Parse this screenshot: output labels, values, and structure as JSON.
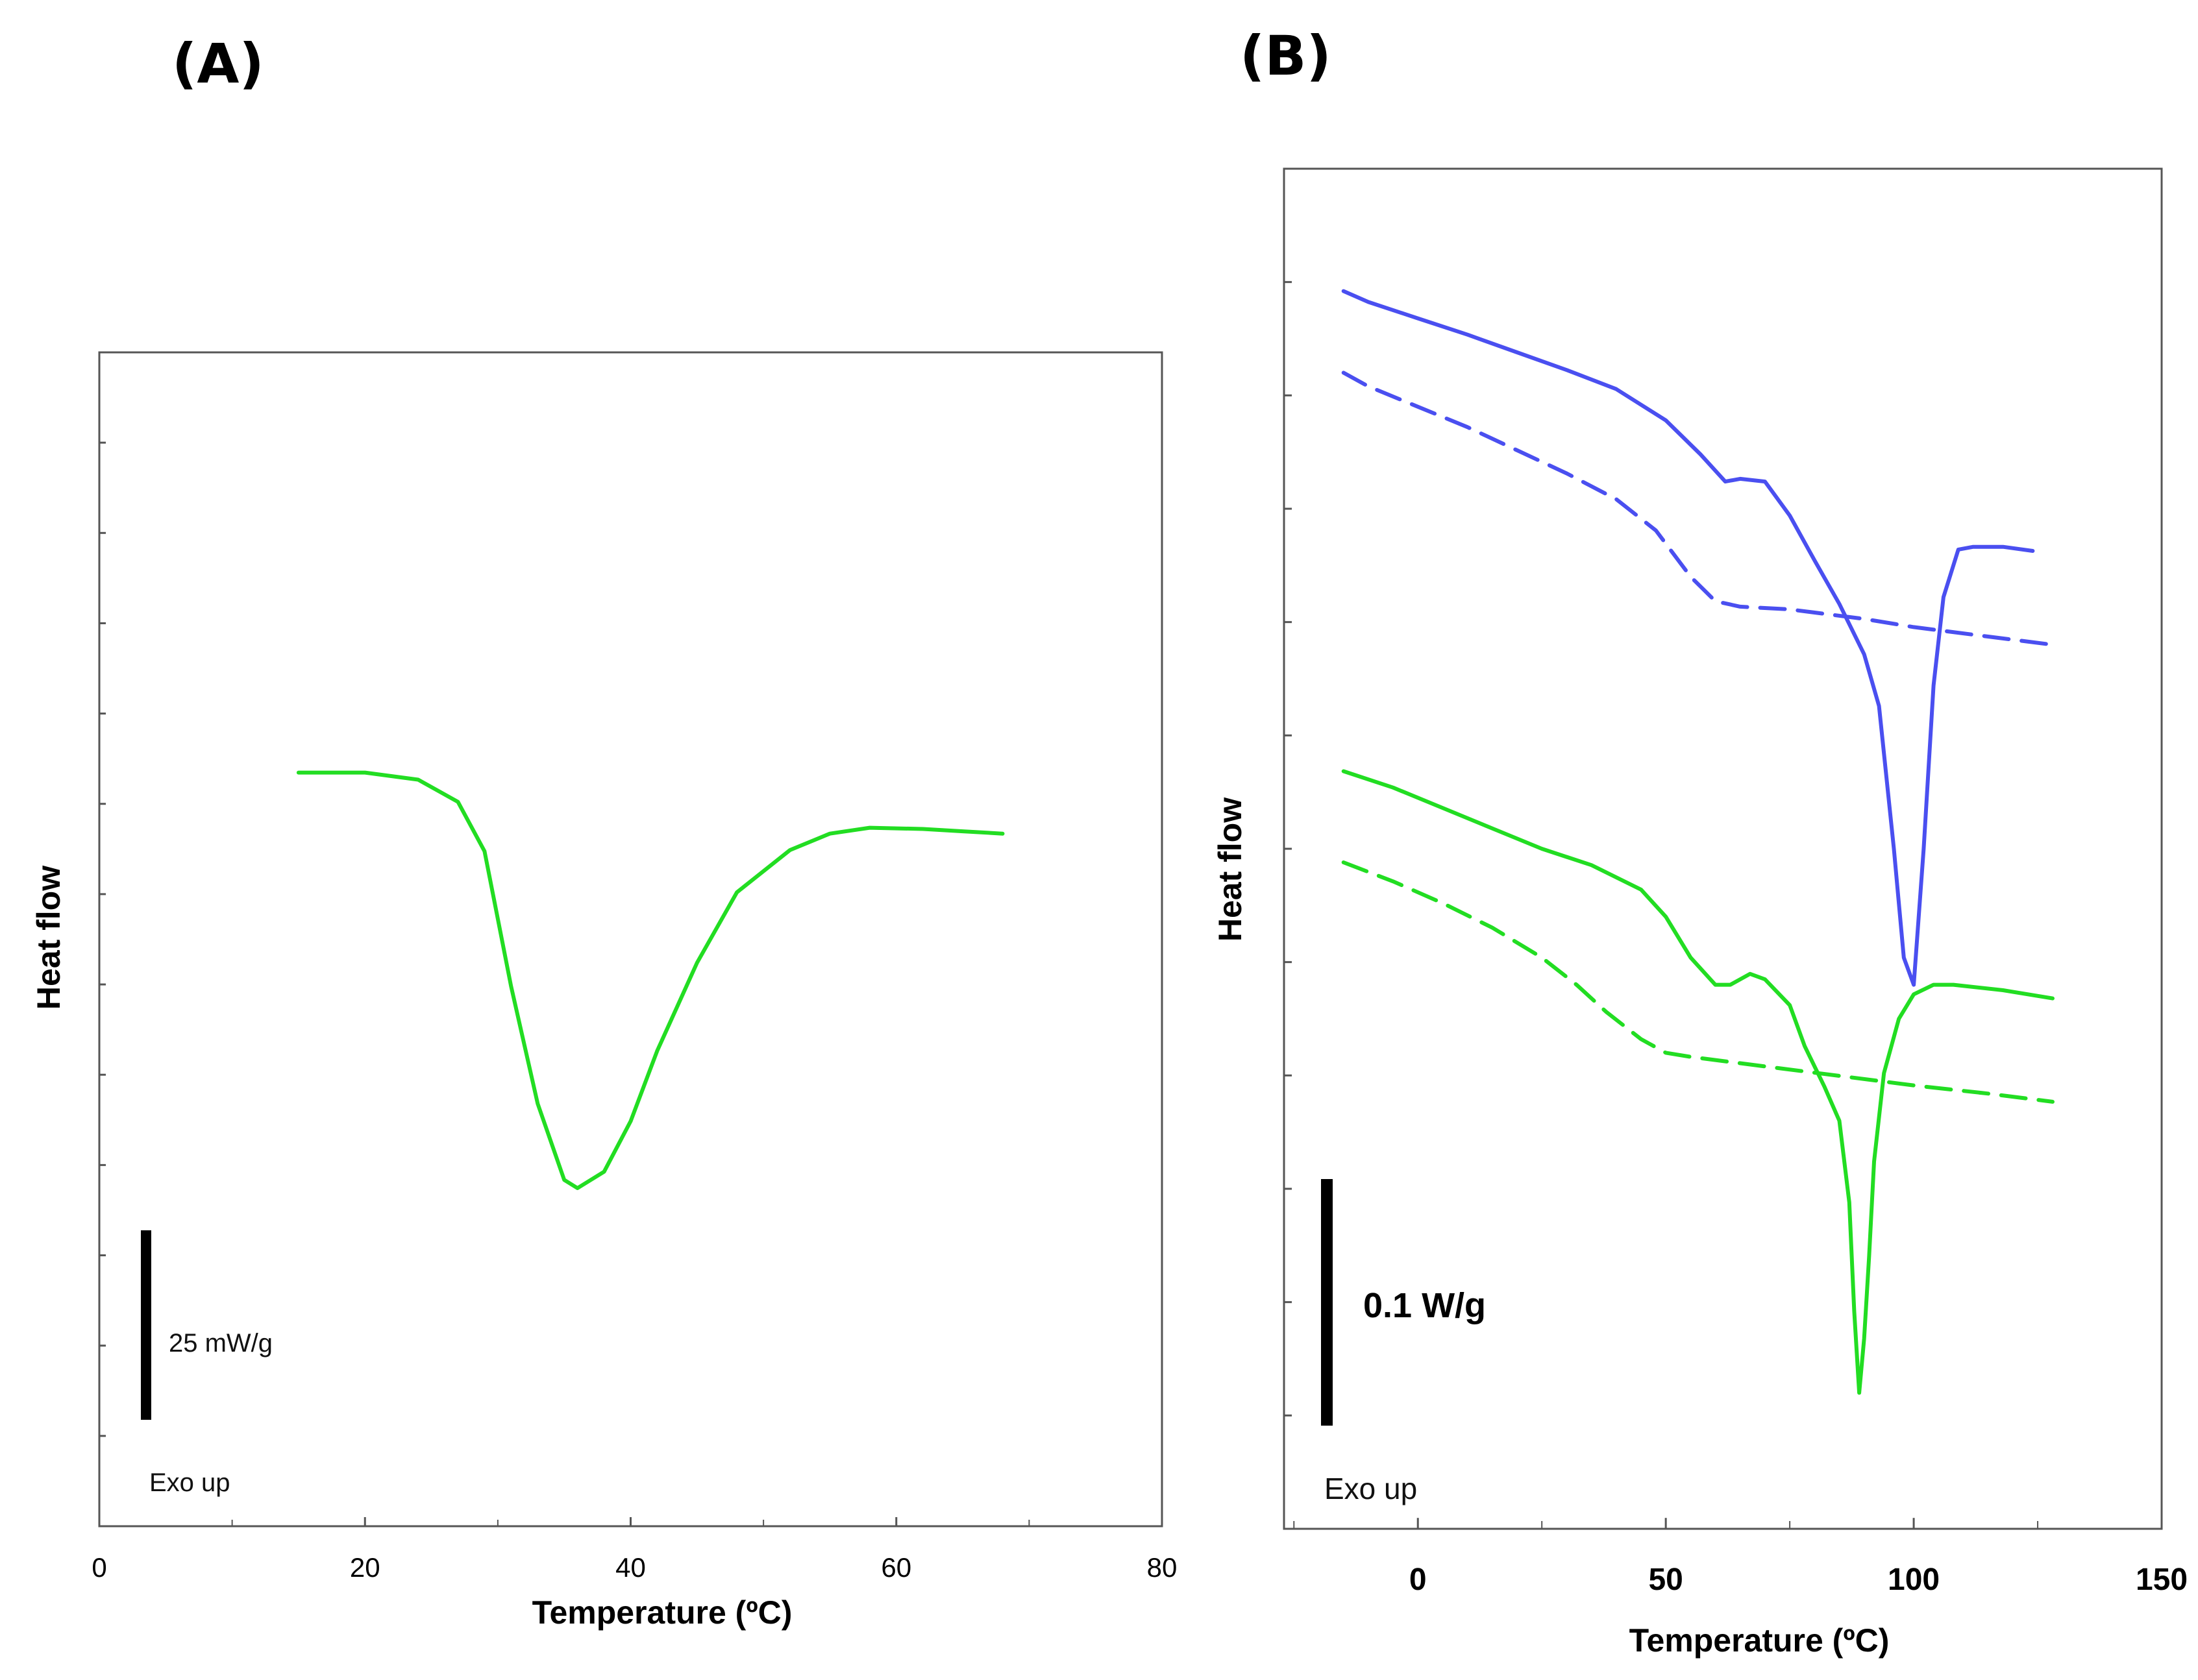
{
  "chart_data": [
    {
      "type": "line",
      "panel_label": "(A)",
      "xlabel": "Temperature (ºC)",
      "ylabel": "Heat flow",
      "xlim": [
        0,
        80
      ],
      "ylim": [
        0,
        1
      ],
      "xticks": [
        "0",
        "20",
        "40",
        "60",
        "80"
      ],
      "scale_bar_label": "25 mW/g",
      "direction_note": "Exo up",
      "series": [
        {
          "name": "green-solid",
          "color": "#22dd22",
          "dash": "solid",
          "points": [
            [
              15,
              0.642
            ],
            [
              20,
              0.642
            ],
            [
              24,
              0.636
            ],
            [
              27,
              0.617
            ],
            [
              29,
              0.575
            ],
            [
              31,
              0.46
            ],
            [
              33,
              0.36
            ],
            [
              35,
              0.295
            ],
            [
              36,
              0.288
            ],
            [
              38,
              0.302
            ],
            [
              40,
              0.345
            ],
            [
              42,
              0.405
            ],
            [
              45,
              0.48
            ],
            [
              48,
              0.54
            ],
            [
              52,
              0.576
            ],
            [
              55,
              0.59
            ],
            [
              58,
              0.595
            ],
            [
              62,
              0.594
            ],
            [
              65,
              0.592
            ],
            [
              68,
              0.59
            ]
          ]
        }
      ]
    },
    {
      "type": "line",
      "panel_label": "(B)",
      "xlabel": "Temperature (ºC)",
      "ylabel": "Heat flow",
      "xlim": [
        -27,
        150
      ],
      "ylim": [
        0,
        1
      ],
      "xticks": [
        "0",
        "50",
        "100",
        "150"
      ],
      "scale_bar_label": "0.1 W/g",
      "direction_note": "Exo up",
      "series": [
        {
          "name": "blue-solid",
          "color": "#4a4ff0",
          "dash": "solid",
          "points": [
            [
              -15,
              0.91
            ],
            [
              -10,
              0.902
            ],
            [
              0,
              0.89
            ],
            [
              10,
              0.878
            ],
            [
              20,
              0.865
            ],
            [
              30,
              0.852
            ],
            [
              40,
              0.838
            ],
            [
              50,
              0.815
            ],
            [
              57,
              0.79
            ],
            [
              62,
              0.77
            ],
            [
              65,
              0.772
            ],
            [
              70,
              0.77
            ],
            [
              75,
              0.745
            ],
            [
              80,
              0.712
            ],
            [
              85,
              0.68
            ],
            [
              90,
              0.643
            ],
            [
              93,
              0.605
            ],
            [
              96,
              0.5
            ],
            [
              98,
              0.42
            ],
            [
              100,
              0.4
            ],
            [
              102,
              0.5
            ],
            [
              104,
              0.62
            ],
            [
              106,
              0.685
            ],
            [
              109,
              0.72
            ],
            [
              112,
              0.722
            ],
            [
              118,
              0.722
            ],
            [
              124,
              0.719
            ]
          ]
        },
        {
          "name": "blue-dashed",
          "color": "#4a4ff0",
          "dash": "dashed",
          "points": [
            [
              -15,
              0.85
            ],
            [
              -10,
              0.84
            ],
            [
              0,
              0.825
            ],
            [
              10,
              0.81
            ],
            [
              20,
              0.793
            ],
            [
              30,
              0.776
            ],
            [
              40,
              0.757
            ],
            [
              48,
              0.734
            ],
            [
              55,
              0.7
            ],
            [
              60,
              0.682
            ],
            [
              65,
              0.678
            ],
            [
              75,
              0.676
            ],
            [
              90,
              0.669
            ],
            [
              100,
              0.663
            ],
            [
              115,
              0.656
            ],
            [
              128,
              0.65
            ]
          ]
        },
        {
          "name": "green-solid",
          "color": "#22dd22",
          "dash": "solid",
          "points": [
            [
              -15,
              0.557
            ],
            [
              -5,
              0.545
            ],
            [
              5,
              0.53
            ],
            [
              15,
              0.515
            ],
            [
              25,
              0.5
            ],
            [
              35,
              0.488
            ],
            [
              45,
              0.47
            ],
            [
              50,
              0.45
            ],
            [
              55,
              0.42
            ],
            [
              60,
              0.4
            ],
            [
              63,
              0.4
            ],
            [
              67,
              0.408
            ],
            [
              70,
              0.404
            ],
            [
              75,
              0.385
            ],
            [
              78,
              0.355
            ],
            [
              82,
              0.325
            ],
            [
              85,
              0.3
            ],
            [
              87,
              0.24
            ],
            [
              88,
              0.16
            ],
            [
              89,
              0.1
            ],
            [
              90,
              0.14
            ],
            [
              91,
              0.2
            ],
            [
              92,
              0.27
            ],
            [
              94,
              0.335
            ],
            [
              97,
              0.375
            ],
            [
              100,
              0.393
            ],
            [
              104,
              0.4
            ],
            [
              108,
              0.4
            ],
            [
              118,
              0.396
            ],
            [
              128,
              0.39
            ]
          ]
        },
        {
          "name": "green-dashed",
          "color": "#22dd22",
          "dash": "dashed",
          "points": [
            [
              -15,
              0.49
            ],
            [
              -5,
              0.476
            ],
            [
              5,
              0.46
            ],
            [
              15,
              0.442
            ],
            [
              25,
              0.42
            ],
            [
              32,
              0.4
            ],
            [
              38,
              0.38
            ],
            [
              45,
              0.36
            ],
            [
              50,
              0.35
            ],
            [
              55,
              0.347
            ],
            [
              70,
              0.34
            ],
            [
              85,
              0.333
            ],
            [
              100,
              0.326
            ],
            [
              115,
              0.32
            ],
            [
              128,
              0.314
            ]
          ]
        }
      ]
    }
  ]
}
